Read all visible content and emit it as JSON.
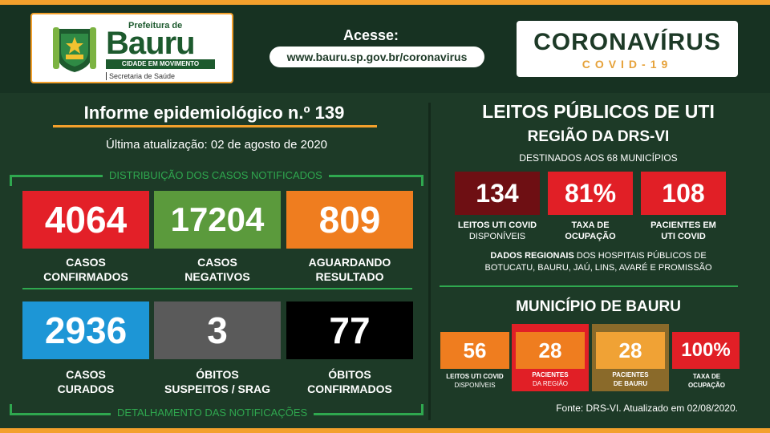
{
  "header": {
    "prefeitura": "Prefeitura de",
    "city": "Bauru",
    "tagline": "CIDADE EM MOVIMENTO",
    "secretaria": "Secretaria de Saúde",
    "acesse_label": "Acesse:",
    "url": "www.bauru.sp.gov.br/coronavirus",
    "campaign_title": "CORONAVÍRUS",
    "campaign_sub": "COVID-19"
  },
  "left": {
    "title": "Informe epidemiológico n.º 139",
    "updated": "Última atualização: 02 de agosto de 2020",
    "dist_label": "DISTRIBUIÇÃO DOS CASOS NOTIFICADOS",
    "detail_label": "DETALHAMENTO DAS NOTIFICAÇÕES",
    "stats": [
      {
        "value": "4064",
        "label1": "CASOS",
        "label2": "CONFIRMADOS",
        "color": "#e32028"
      },
      {
        "value": "17204",
        "label1": "CASOS",
        "label2": "NEGATIVOS",
        "color": "#5b9a3c"
      },
      {
        "value": "809",
        "label1": "AGUARDANDO",
        "label2": "RESULTADO",
        "color": "#ef7d1f"
      },
      {
        "value": "2936",
        "label1": "CASOS",
        "label2": "CURADOS",
        "color": "#1d96d6"
      },
      {
        "value": "3",
        "label1": "ÓBITOS",
        "label2": "SUSPEITOS / SRAG",
        "color": "#5a5a5a"
      },
      {
        "value": "77",
        "label1": "ÓBITOS",
        "label2": "CONFIRMADOS",
        "color": "#000000"
      }
    ]
  },
  "right": {
    "title": "LEITOS PÚBLICOS DE UTI",
    "region": "REGIÃO DA DRS-VI",
    "destined": "DESTINADOS AOS 68 MUNICÍPIOS",
    "regional": [
      {
        "value": "134",
        "label1": "LEITOS UTI COVID",
        "label2": "DISPONÍVEIS",
        "color": "#6e0f13"
      },
      {
        "value": "81%",
        "label1": "TAXA DE",
        "label2": "OCUPAÇÃO",
        "color": "#e11f26"
      },
      {
        "value": "108",
        "label1": "PACIENTES EM",
        "label2": "UTI COVID",
        "color": "#e11f26"
      }
    ],
    "dados_bold": "DADOS REGIONAIS",
    "dados_rest1": " DOS HOSPITAIS PÚBLICOS DE",
    "dados_line2": "BOTUCATU, BAURU, JAÚ, LINS, AVARÉ E PROMISSÃO",
    "municipio": "MUNICÍPIO DE BAURU",
    "municipal": [
      {
        "value": "56",
        "label1": "LEITOS UTI COVID",
        "label2": "DISPONÍVEIS",
        "color": "#ef7d1f"
      },
      {
        "value": "28",
        "label1": "PACIENTES",
        "label2": "DA REGIÃO",
        "color": "#ef7d1f"
      },
      {
        "value": "28",
        "label1": "PACIENTES",
        "label2": "DE BAURU",
        "color": "#f0a235"
      },
      {
        "value": "100%",
        "label1": "TAXA DE",
        "label2": "OCUPAÇÃO",
        "color": "#e11f26"
      }
    ],
    "fonte": "Fonte: DRS-VI. Atualizado em 02/08/2020."
  }
}
